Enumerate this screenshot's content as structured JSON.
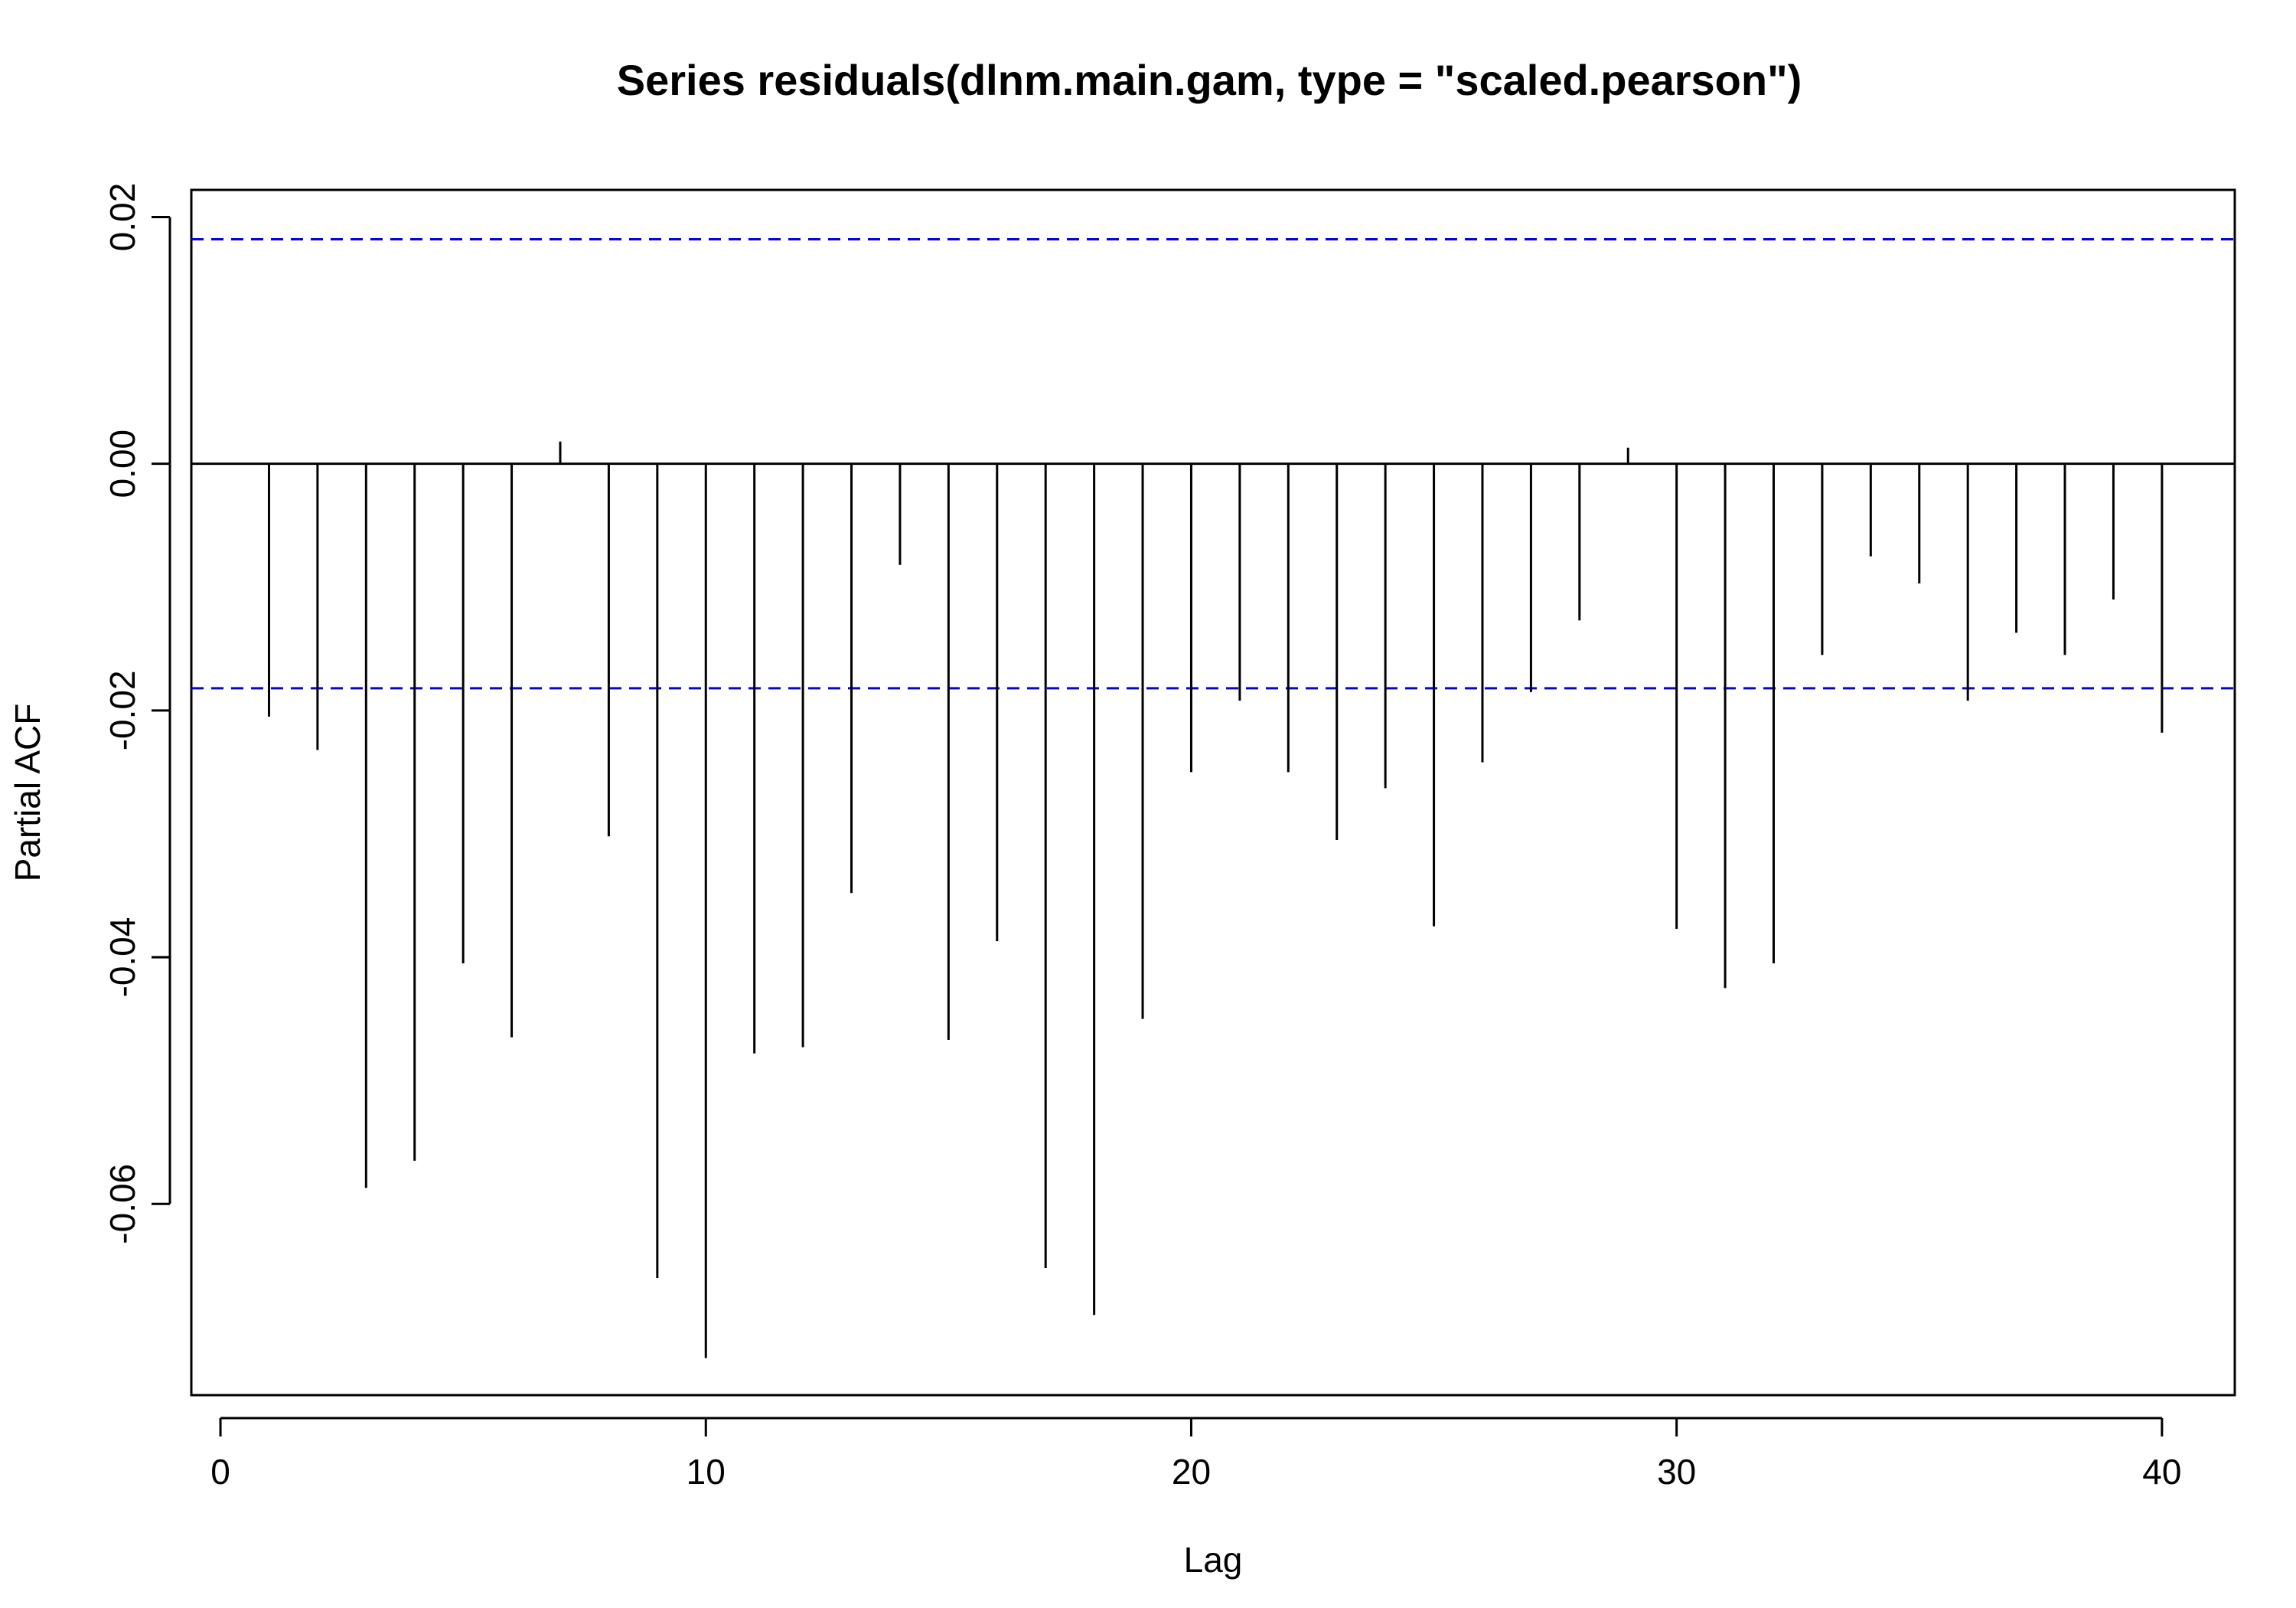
{
  "chart_data": {
    "type": "bar",
    "title": "Series  residuals(dlnm.main.gam, type = \"scaled.pearson\")",
    "xlabel": "Lag",
    "ylabel": "Partial ACF",
    "xlim": [
      -0.6,
      41.5
    ],
    "ylim": [
      -0.0755,
      0.0222
    ],
    "x_ticks": [
      0,
      10,
      20,
      30,
      40
    ],
    "y_ticks": [
      -0.06,
      -0.04,
      -0.02,
      0.0,
      0.02
    ],
    "y_tick_labels": [
      "-0.06",
      "-0.04",
      "-0.02",
      "0.00",
      "0.02"
    ],
    "confidence_bound": 0.0182,
    "confidence_line_color": "#0000ee",
    "lags": [
      1,
      2,
      3,
      4,
      5,
      6,
      7,
      8,
      9,
      10,
      11,
      12,
      13,
      14,
      15,
      16,
      17,
      18,
      19,
      20,
      21,
      22,
      23,
      24,
      25,
      26,
      27,
      28,
      29,
      30,
      31,
      32,
      33,
      34,
      35,
      36,
      37,
      38,
      39,
      40
    ],
    "values": [
      -0.0205,
      -0.0232,
      -0.0587,
      -0.0565,
      -0.0405,
      -0.0465,
      0.0018,
      -0.0302,
      -0.066,
      -0.0725,
      -0.0478,
      -0.0473,
      -0.0348,
      -0.0082,
      -0.0467,
      -0.0387,
      -0.0652,
      -0.069,
      -0.045,
      -0.025,
      -0.0192,
      -0.025,
      -0.0305,
      -0.0263,
      -0.0375,
      -0.0242,
      -0.0185,
      -0.0127,
      0.0013,
      -0.0377,
      -0.0425,
      -0.0405,
      -0.0155,
      -0.0075,
      -0.0097,
      -0.0192,
      -0.0137,
      -0.0155,
      -0.011,
      -0.0218
    ]
  }
}
